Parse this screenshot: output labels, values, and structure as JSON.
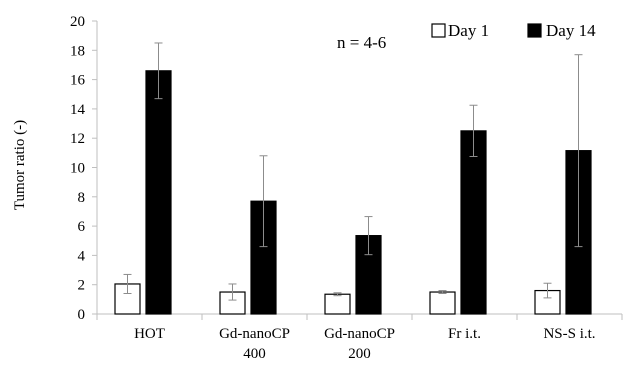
{
  "chart_data": {
    "type": "bar",
    "title": "",
    "xlabel": "",
    "ylabel": "Tumor ratio (-)",
    "annotation": "n = 4-6",
    "ylim": [
      0,
      20
    ],
    "yticks": [
      0,
      2,
      4,
      6,
      8,
      10,
      12,
      14,
      16,
      18,
      20
    ],
    "grid": false,
    "legend_position": "top-right",
    "categories": [
      [
        "HOT"
      ],
      [
        "Gd-nanoCP",
        "400"
      ],
      [
        "Gd-nanoCP",
        "200"
      ],
      [
        "Fr i.t."
      ],
      [
        "NS-S i.t."
      ]
    ],
    "series": [
      {
        "name": "Day 1",
        "fill": "#ffffff",
        "stroke": "#000000",
        "values": [
          2.05,
          1.5,
          1.35,
          1.5,
          1.6
        ],
        "error": [
          0.65,
          0.55,
          0.1,
          0.1,
          0.5
        ]
      },
      {
        "name": "Day 14",
        "fill": "#000000",
        "stroke": "#000000",
        "values": [
          16.6,
          7.7,
          5.35,
          12.5,
          11.15
        ],
        "error": [
          1.9,
          3.1,
          1.3,
          1.75,
          6.55
        ]
      }
    ],
    "colors": {
      "axis": "#bfbfbf",
      "errorbar": "#8c8c8c",
      "text": "#000000"
    }
  }
}
